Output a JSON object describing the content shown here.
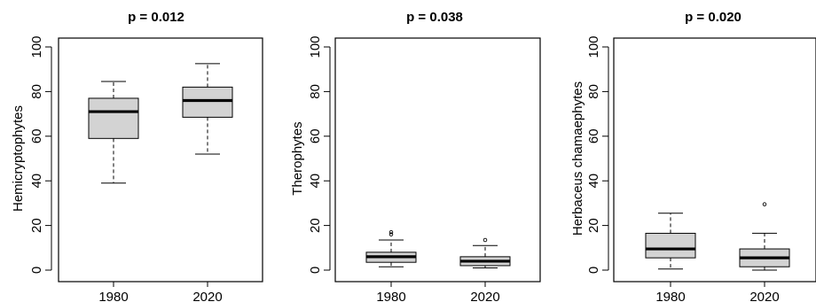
{
  "chart_data": [
    {
      "type": "box",
      "title": "p = 0.012",
      "ylabel": "Hemicryptophytes",
      "categories": [
        "1980",
        "2020"
      ],
      "ylim": [
        0,
        100
      ],
      "yticks": [
        "0",
        "20",
        "40",
        "60",
        "80",
        "100"
      ],
      "boxes": [
        {
          "category": "1980",
          "min": 39,
          "q1": 59,
          "median": 71,
          "q3": 77,
          "max": 84.5,
          "outliers": []
        },
        {
          "category": "2020",
          "min": 52,
          "q1": 68.5,
          "median": 76,
          "q3": 82,
          "max": 92.5,
          "outliers": []
        }
      ]
    },
    {
      "type": "box",
      "title": "p = 0.038",
      "ylabel": "Therophytes",
      "categories": [
        "1980",
        "2020"
      ],
      "ylim": [
        0,
        100
      ],
      "yticks": [
        "0",
        "20",
        "40",
        "60",
        "80",
        "100"
      ],
      "boxes": [
        {
          "category": "1980",
          "min": 1.5,
          "q1": 3.5,
          "median": 6,
          "q3": 8,
          "max": 13.5,
          "outliers": [
            16,
            17
          ]
        },
        {
          "category": "2020",
          "min": 1,
          "q1": 2,
          "median": 4,
          "q3": 6,
          "max": 11,
          "outliers": [
            13.5
          ]
        }
      ]
    },
    {
      "type": "box",
      "title": "p = 0.020",
      "ylabel": "Herbaceus chamaephytes",
      "categories": [
        "1980",
        "2020"
      ],
      "ylim": [
        0,
        100
      ],
      "yticks": [
        "0",
        "20",
        "40",
        "60",
        "80",
        "100"
      ],
      "boxes": [
        {
          "category": "1980",
          "min": 0.5,
          "q1": 5.5,
          "median": 9.5,
          "q3": 16.5,
          "max": 25.5,
          "outliers": []
        },
        {
          "category": "2020",
          "min": 0,
          "q1": 1.5,
          "median": 5.5,
          "q3": 9.5,
          "max": 16.5,
          "outliers": [
            29.5
          ]
        }
      ]
    }
  ],
  "colors": {
    "box_fill": "#d3d3d3",
    "stroke": "#000000",
    "background": "#ffffff"
  }
}
